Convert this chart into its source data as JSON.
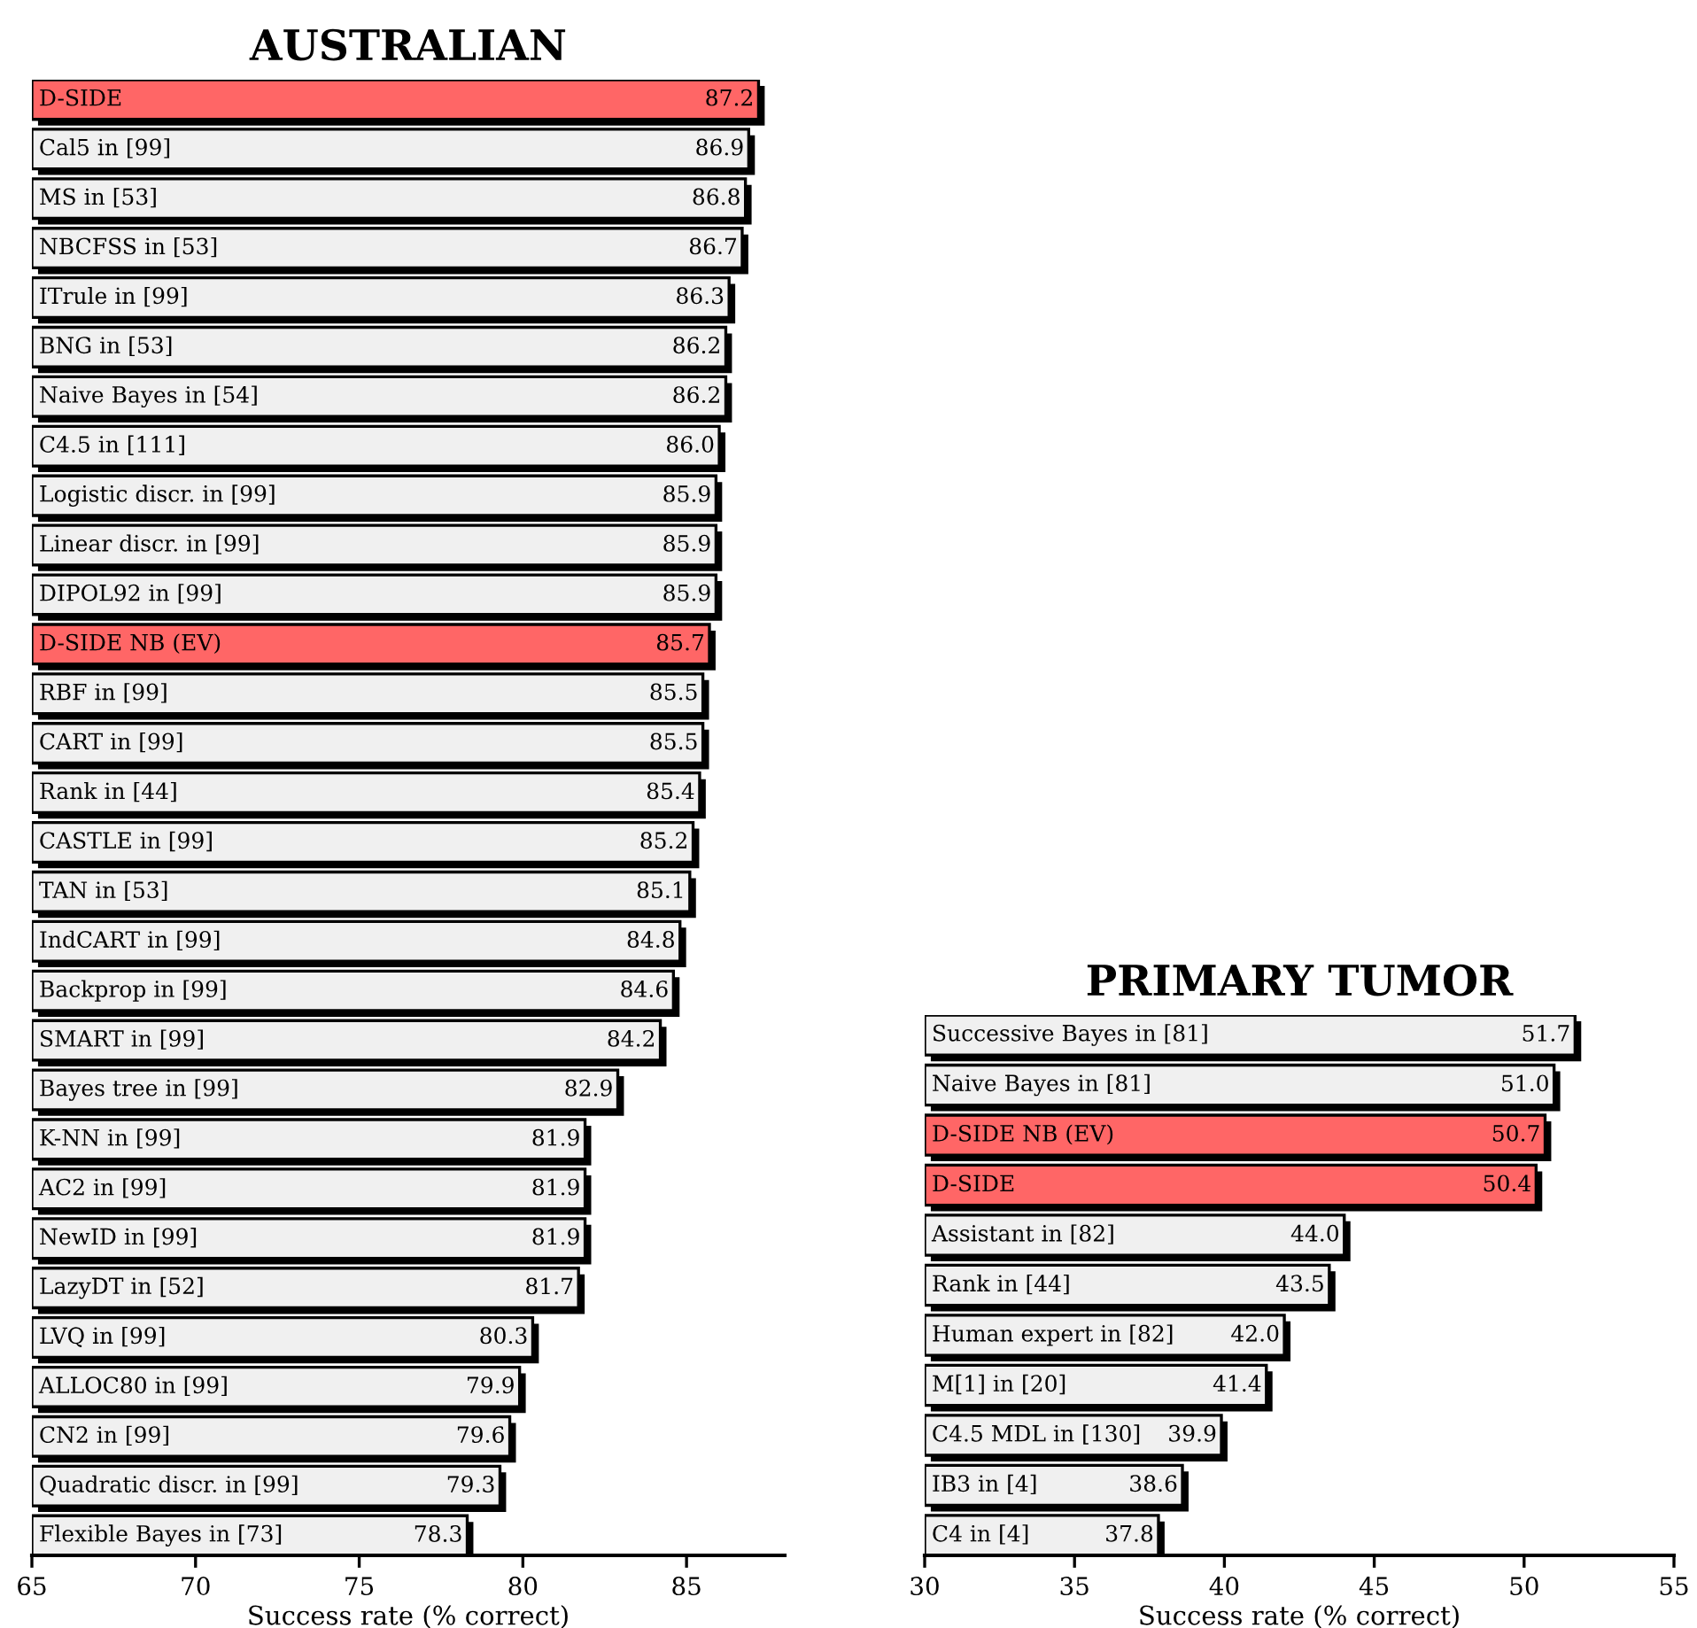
{
  "chart_data": [
    {
      "type": "bar",
      "orientation": "horizontal",
      "title": "AUSTRALIAN",
      "xlabel": "Success rate (% correct)",
      "categories": [
        "D-SIDE",
        "Cal5 in [99]",
        "MS in [53]",
        "NBCFSS in [53]",
        "ITrule in [99]",
        "BNG in [53]",
        "Naive Bayes in [54]",
        "C4.5 in [111]",
        "Logistic discr. in [99]",
        "Linear discr. in [99]",
        "DIPOL92 in [99]",
        "D-SIDE NB (EV)",
        "RBF in [99]",
        "CART in [99]",
        "Rank in [44]",
        "CASTLE in [99]",
        "TAN in [53]",
        "IndCART in [99]",
        "Backprop in [99]",
        "SMART in [99]",
        "Bayes tree in [99]",
        "K-NN in [99]",
        "AC2 in [99]",
        "NewID in [99]",
        "LazyDT in [52]",
        "LVQ in [99]",
        "ALLOC80 in [99]",
        "CN2 in [99]",
        "Quadratic discr. in [99]",
        "Flexible Bayes in [73]"
      ],
      "values": [
        87.2,
        86.9,
        86.8,
        86.7,
        86.3,
        86.2,
        86.2,
        86.0,
        85.9,
        85.9,
        85.9,
        85.7,
        85.5,
        85.5,
        85.4,
        85.2,
        85.1,
        84.8,
        84.6,
        84.2,
        82.9,
        81.9,
        81.9,
        81.9,
        81.7,
        80.3,
        79.9,
        79.6,
        79.3,
        78.3
      ],
      "colors": [
        "#ff6666",
        "#f0f0f0",
        "#f0f0f0",
        "#f0f0f0",
        "#f0f0f0",
        "#f0f0f0",
        "#f0f0f0",
        "#f0f0f0",
        "#f0f0f0",
        "#f0f0f0",
        "#f0f0f0",
        "#ff6666",
        "#f0f0f0",
        "#f0f0f0",
        "#f0f0f0",
        "#f0f0f0",
        "#f0f0f0",
        "#f0f0f0",
        "#f0f0f0",
        "#f0f0f0",
        "#f0f0f0",
        "#f0f0f0",
        "#f0f0f0",
        "#f0f0f0",
        "#f0f0f0",
        "#f0f0f0",
        "#f0f0f0",
        "#f0f0f0",
        "#f0f0f0",
        "#f0f0f0"
      ],
      "value_labels": [
        "87.2",
        "86.9",
        "86.8",
        "86.7",
        "86.3",
        "86.2",
        "86.2",
        "86.0",
        "85.9",
        "85.9",
        "85.9",
        "85.7",
        "85.5",
        "85.5",
        "85.4",
        "85.2",
        "85.1",
        "84.8",
        "84.6",
        "84.2",
        "82.9",
        "81.9",
        "81.9",
        "81.9",
        "81.7",
        "80.3",
        "79.9",
        "79.6",
        "79.3",
        "78.3"
      ],
      "xlim": [
        65,
        88
      ],
      "xticks": [
        65,
        70,
        75,
        80,
        85
      ]
    },
    {
      "type": "bar",
      "orientation": "horizontal",
      "title": "PRIMARY TUMOR",
      "xlabel": "Success rate (% correct)",
      "categories": [
        "Successive Bayes in [81]",
        "Naive Bayes in [81]",
        "D-SIDE NB (EV)",
        "D-SIDE",
        "Assistant in [82]",
        "Rank in [44]",
        "Human expert in [82]",
        "M[1] in [20]",
        "C4.5 MDL in [130]",
        "IB3 in [4]",
        "C4 in [4]"
      ],
      "values": [
        51.7,
        51.0,
        50.7,
        50.4,
        44.0,
        43.5,
        42.0,
        41.4,
        39.9,
        38.6,
        37.8
      ],
      "colors": [
        "#f0f0f0",
        "#f0f0f0",
        "#ff6666",
        "#ff6666",
        "#f0f0f0",
        "#f0f0f0",
        "#f0f0f0",
        "#f0f0f0",
        "#f0f0f0",
        "#f0f0f0",
        "#f0f0f0"
      ],
      "value_labels": [
        "51.7",
        "51.0",
        "50.7",
        "50.4",
        "44.0",
        "43.5",
        "42.0",
        "41.4",
        "39.9",
        "38.6",
        "37.8"
      ],
      "xlim": [
        30,
        55
      ],
      "xticks": [
        30,
        35,
        40,
        45,
        50,
        55
      ]
    }
  ]
}
